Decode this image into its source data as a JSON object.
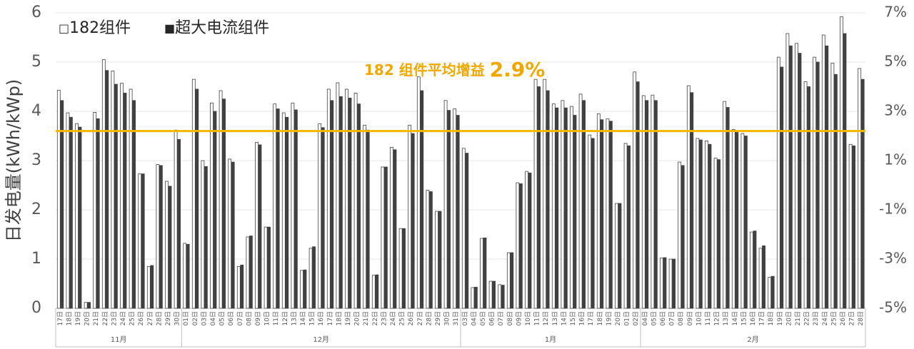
{
  "chart_data": {
    "type": "bar",
    "y_label": "日发电量(kWh/kWp)",
    "annotation": {
      "label": "182 组件平均增益",
      "value": "2.9%",
      "color": "#f0a800"
    },
    "groups": [
      {
        "label": "11月",
        "categories": [
          "17日",
          "18日",
          "19日",
          "20日",
          "21日",
          "22日",
          "23日",
          "24日",
          "25日",
          "26日",
          "27日",
          "28日",
          "29日",
          "30日"
        ]
      },
      {
        "label": "12月",
        "categories": [
          "01日",
          "02日",
          "03日",
          "04日",
          "05日",
          "06日",
          "07日",
          "08日",
          "09日",
          "10日",
          "11日",
          "12日",
          "13日",
          "14日",
          "15日",
          "16日",
          "17日",
          "18日",
          "19日",
          "20日",
          "21日",
          "22日",
          "23日",
          "24日",
          "25日",
          "26日",
          "27日",
          "28日",
          "29日",
          "30日",
          "31日"
        ]
      },
      {
        "label": "1月",
        "categories": [
          "03日",
          "04日",
          "05日",
          "06日",
          "07日",
          "08日",
          "09日",
          "10日",
          "11日",
          "12日",
          "13日",
          "14日",
          "15日",
          "16日",
          "17日",
          "18日",
          "19日",
          "20日",
          "01日",
          "02日"
        ]
      },
      {
        "label": "2月",
        "categories": [
          "04日",
          "05日",
          "06日",
          "07日",
          "08日",
          "09日",
          "10日",
          "11日",
          "12日",
          "13日",
          "14日",
          "15日",
          "16日",
          "17日",
          "18日",
          "19日",
          "20日",
          "21日",
          "22日",
          "23日",
          "24日",
          "25日",
          "26日",
          "27日",
          "28日"
        ]
      }
    ],
    "series": [
      {
        "name": "182组件",
        "marker": "□",
        "color": "#ffffff",
        "stroke": "#404040",
        "values": [
          4.43,
          3.97,
          3.75,
          0.12,
          3.98,
          5.05,
          4.82,
          4.57,
          4.45,
          2.73,
          0.85,
          2.92,
          2.58,
          3.62,
          1.32,
          4.65,
          3.0,
          4.17,
          4.42,
          3.03,
          0.85,
          1.45,
          3.37,
          1.65,
          4.15,
          3.97,
          4.17,
          0.77,
          1.22,
          3.75,
          4.45,
          4.58,
          4.45,
          4.37,
          3.72,
          0.67,
          2.87,
          3.27,
          1.62,
          3.72,
          4.7,
          2.4,
          1.97,
          4.22,
          4.05,
          3.25,
          0.42,
          1.42,
          0.55,
          0.48,
          1.13,
          2.55,
          2.78,
          4.65,
          4.65,
          4.15,
          4.22,
          4.1,
          4.35,
          3.52,
          3.95,
          3.85,
          2.13,
          3.35,
          4.8,
          4.32,
          4.33,
          1.02,
          1.0,
          2.97,
          4.52,
          3.45,
          3.4,
          3.05,
          4.2,
          3.63,
          3.55,
          1.55,
          1.22,
          0.63,
          5.1,
          5.58,
          5.38,
          4.6,
          5.1,
          5.55,
          4.98,
          5.92,
          3.33,
          4.87
        ]
      },
      {
        "name": "超大电流组件",
        "marker": "■",
        "color": "#404040",
        "stroke": "#404040",
        "values": [
          4.22,
          3.88,
          3.68,
          0.12,
          3.85,
          4.83,
          4.55,
          4.37,
          4.22,
          2.73,
          0.87,
          2.9,
          2.48,
          3.43,
          1.3,
          4.45,
          2.88,
          4.0,
          4.25,
          2.97,
          0.88,
          1.47,
          3.32,
          1.65,
          4.05,
          3.88,
          4.03,
          0.78,
          1.25,
          3.67,
          4.22,
          4.3,
          4.27,
          4.15,
          3.62,
          0.68,
          2.87,
          3.22,
          1.62,
          3.55,
          4.42,
          2.37,
          1.97,
          4.02,
          3.92,
          3.15,
          0.43,
          1.43,
          0.55,
          0.47,
          1.13,
          2.53,
          2.75,
          4.5,
          4.42,
          4.07,
          4.07,
          3.92,
          4.22,
          3.45,
          3.83,
          3.8,
          2.13,
          3.3,
          4.6,
          4.22,
          4.22,
          1.03,
          1.0,
          2.9,
          4.38,
          3.42,
          3.33,
          3.02,
          4.08,
          3.6,
          3.5,
          1.57,
          1.27,
          0.65,
          4.9,
          5.33,
          5.18,
          4.5,
          5.0,
          5.33,
          4.75,
          5.58,
          3.3,
          4.65
        ]
      }
    ],
    "reference_line": {
      "value": 2.2,
      "axis": "y2",
      "color": "#f5b800"
    },
    "ylim": [
      0,
      6
    ],
    "yticks": [
      0,
      1,
      2,
      3,
      4,
      5,
      6
    ],
    "y2lim": [
      -5,
      7
    ],
    "y2ticks": [
      {
        "value": -5,
        "label": "-5%"
      },
      {
        "value": -3,
        "label": "-3%"
      },
      {
        "value": -1,
        "label": "-1%"
      },
      {
        "value": 1,
        "label": "1%"
      },
      {
        "value": 3,
        "label": "3%"
      },
      {
        "value": 5,
        "label": "5%"
      },
      {
        "value": 7,
        "label": "7%"
      }
    ],
    "grid": true
  }
}
